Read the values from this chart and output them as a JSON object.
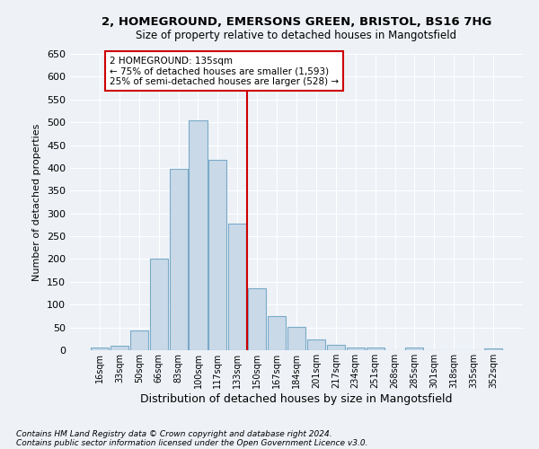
{
  "title_line1": "2, HOMEGROUND, EMERSONS GREEN, BRISTOL, BS16 7HG",
  "title_line2": "Size of property relative to detached houses in Mangotsfield",
  "xlabel": "Distribution of detached houses by size in Mangotsfield",
  "ylabel": "Number of detached properties",
  "bar_labels": [
    "16sqm",
    "33sqm",
    "50sqm",
    "66sqm",
    "83sqm",
    "100sqm",
    "117sqm",
    "133sqm",
    "150sqm",
    "167sqm",
    "184sqm",
    "201sqm",
    "217sqm",
    "234sqm",
    "251sqm",
    "268sqm",
    "285sqm",
    "301sqm",
    "318sqm",
    "335sqm",
    "352sqm"
  ],
  "bar_values": [
    5,
    10,
    44,
    200,
    397,
    505,
    418,
    277,
    136,
    75,
    51,
    24,
    11,
    6,
    5,
    0,
    5,
    0,
    0,
    0,
    3
  ],
  "bar_color": "#c9d9e8",
  "bar_edge_color": "#7aaac8",
  "annotation_line1": "2 HOMEGROUND: 135sqm",
  "annotation_line2": "← 75% of detached houses are smaller (1,593)",
  "annotation_line3": "25% of semi-detached houses are larger (528) →",
  "vline_color": "#cc0000",
  "annotation_box_edge": "#cc0000",
  "ylim": [
    0,
    650
  ],
  "yticks": [
    0,
    50,
    100,
    150,
    200,
    250,
    300,
    350,
    400,
    450,
    500,
    550,
    600,
    650
  ],
  "footer_line1": "Contains HM Land Registry data © Crown copyright and database right 2024.",
  "footer_line2": "Contains public sector information licensed under the Open Government Licence v3.0.",
  "background_color": "#eef2f7",
  "grid_color": "#ffffff"
}
